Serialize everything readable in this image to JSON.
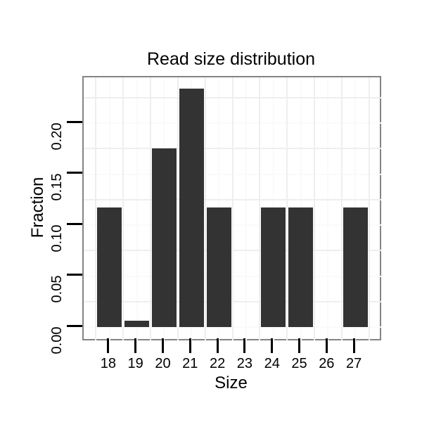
{
  "title": "Read size distribution",
  "chart_data": {
    "type": "bar",
    "title": "Read size distribution",
    "xlabel": "Size",
    "ylabel": "Fraction",
    "categories": [
      18,
      19,
      20,
      21,
      22,
      23,
      24,
      25,
      26,
      27
    ],
    "values": [
      0.117,
      0.006,
      0.175,
      0.234,
      0.117,
      0,
      0.117,
      0.117,
      0,
      0.117
    ],
    "x_tick_labels": [
      "18",
      "19",
      "20",
      "21",
      "22",
      "23",
      "24",
      "25",
      "26",
      "27"
    ],
    "y_tick_labels": [
      "0.00",
      "0.05",
      "0.10",
      "0.15",
      "0.20"
    ],
    "y_tick_values": [
      0,
      0.05,
      0.1,
      0.15,
      0.2
    ],
    "ylim": [
      -0.0131,
      0.2449
    ],
    "xlim": [
      17.05,
      27.95
    ],
    "bar_width": 0.9,
    "grid": "on",
    "legend": "none",
    "minor_grid_x_step": 0.5,
    "minor_grid_y_step": 0.025
  },
  "colors": {
    "bar_fill": "#333333",
    "panel_border": "#848484",
    "panel_background": "#ffffff",
    "grid_minor": "#eeeeee",
    "grid_major": "#fafafa",
    "tick": "#000000",
    "text": "#000000"
  }
}
